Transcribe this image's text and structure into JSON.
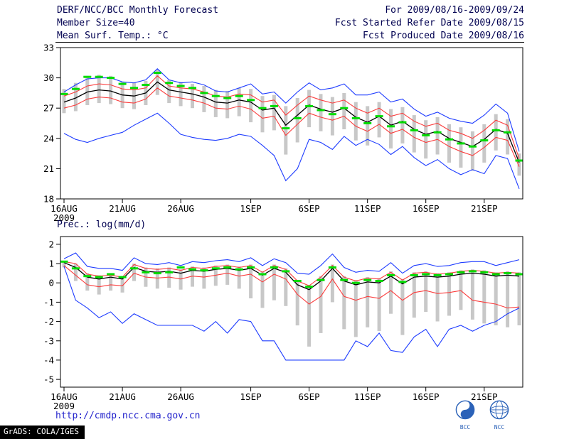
{
  "header": {
    "title": "DERF/NCC/BCC Monthly Forecast",
    "member_size": "Member Size=40",
    "period": "For 2009/08/16-2009/09/24",
    "refer_date": "Fcst Started Refer Date 2009/08/15",
    "produced_date": "Fcst Produced Date 2009/08/16"
  },
  "footer": {
    "url": "http://cmdp.ncc.cma.gov.cn",
    "grads_credit": "GrADS: COLA/IGES",
    "logo_left": "BCC",
    "logo_right": "NCC"
  },
  "colors": {
    "header_text": "#000050",
    "max_min_line": "#1e3cff",
    "quartile_line": "#fa3c3c",
    "median_line": "#000000",
    "ensemble_mean_dash": "#00dc00",
    "spread_bar": "#c8c8c8",
    "url_text": "#2222cc",
    "logo_blue": "#2b62b8"
  },
  "chart_data": [
    {
      "id": "temp",
      "type": "line",
      "title": "Mean Surf. Temp.: °C",
      "ylim": [
        18,
        33
      ],
      "y_ticks": [
        18,
        21,
        24,
        27,
        30,
        33
      ],
      "x_tick_labels": [
        "16AUG",
        "21AUG",
        "26AUG",
        "1SEP",
        "6SEP",
        "11SEP",
        "16SEP",
        "21SEP"
      ],
      "x_tick_indices": [
        0,
        5,
        10,
        16,
        21,
        26,
        31,
        36
      ],
      "x_year_label": "2009",
      "n_points": 40,
      "grid": false,
      "legend": "none",
      "series": [
        {
          "name": "member-spread",
          "style": "bars",
          "color": "#c8c8c8",
          "high": [
            28.9,
            29.5,
            30.2,
            30.3,
            30.2,
            29.6,
            29.5,
            29.7,
            30.8,
            29.8,
            29.6,
            29.4,
            29.2,
            28.8,
            28.7,
            29.0,
            28.9,
            28.2,
            28.3,
            27.2,
            28.0,
            28.8,
            28.4,
            28.1,
            28.5,
            27.6,
            27.2,
            27.6,
            26.9,
            27.1,
            26.3,
            25.8,
            26.1,
            25.4,
            25.1,
            24.7,
            25.4,
            26.4,
            25.9,
            22.5
          ],
          "low": [
            26.5,
            26.7,
            27.3,
            27.5,
            27.4,
            27.0,
            26.9,
            27.3,
            28.3,
            27.5,
            27.2,
            27.0,
            26.6,
            26.1,
            26.0,
            26.2,
            25.6,
            24.6,
            24.8,
            22.4,
            23.6,
            25.1,
            24.7,
            24.3,
            24.9,
            23.8,
            23.3,
            24.1,
            23.0,
            23.5,
            22.6,
            22.0,
            22.4,
            21.6,
            21.1,
            20.8,
            21.6,
            22.8,
            22.4,
            20.3
          ]
        },
        {
          "name": "member-max",
          "style": "line",
          "color": "#1e3cff",
          "values": [
            28.6,
            29.3,
            29.9,
            30.0,
            30.0,
            29.6,
            29.5,
            29.8,
            30.9,
            29.8,
            29.5,
            29.6,
            29.3,
            28.7,
            28.6,
            29.0,
            29.4,
            28.4,
            28.6,
            27.5,
            28.6,
            29.5,
            28.8,
            29.0,
            29.4,
            28.3,
            28.3,
            28.6,
            27.6,
            27.9,
            26.9,
            26.2,
            26.6,
            26.0,
            25.7,
            25.5,
            26.3,
            27.4,
            26.5,
            22.7
          ]
        },
        {
          "name": "member-min",
          "style": "line",
          "color": "#1e3cff",
          "values": [
            24.5,
            23.9,
            23.6,
            24.0,
            24.3,
            24.6,
            25.3,
            25.9,
            26.5,
            25.5,
            24.4,
            24.1,
            23.9,
            23.8,
            24.0,
            24.4,
            24.2,
            23.3,
            22.3,
            19.8,
            21.0,
            23.9,
            23.6,
            22.9,
            24.2,
            23.3,
            23.9,
            23.4,
            22.4,
            23.2,
            22.1,
            21.3,
            21.9,
            21.0,
            20.4,
            20.9,
            20.5,
            22.3,
            22.0,
            19.0
          ]
        },
        {
          "name": "upper-quartile",
          "style": "line",
          "color": "#fa3c3c",
          "values": [
            28.2,
            28.6,
            29.2,
            29.4,
            29.3,
            28.9,
            28.8,
            29.0,
            30.2,
            29.2,
            29.0,
            28.9,
            28.6,
            28.2,
            28.1,
            28.4,
            28.3,
            27.6,
            27.8,
            26.3,
            27.3,
            28.2,
            27.8,
            27.5,
            27.8,
            27.0,
            26.5,
            27.0,
            26.2,
            26.5,
            25.7,
            25.2,
            25.5,
            24.8,
            24.5,
            24.0,
            24.8,
            25.8,
            25.3,
            22.0
          ]
        },
        {
          "name": "lower-quartile",
          "style": "line",
          "color": "#fa3c3c",
          "values": [
            27.0,
            27.3,
            27.9,
            28.1,
            28.0,
            27.6,
            27.5,
            27.9,
            29.0,
            28.2,
            28.0,
            27.8,
            27.5,
            27.0,
            26.9,
            27.2,
            26.9,
            26.0,
            26.2,
            24.3,
            25.4,
            26.5,
            26.1,
            25.8,
            26.2,
            25.2,
            24.7,
            25.4,
            24.5,
            24.9,
            24.1,
            23.6,
            23.9,
            23.2,
            22.7,
            22.3,
            23.1,
            24.1,
            23.8,
            21.2
          ]
        },
        {
          "name": "median",
          "style": "line",
          "color": "#000000",
          "width": 1.3,
          "values": [
            27.6,
            28.0,
            28.6,
            28.8,
            28.7,
            28.3,
            28.2,
            28.5,
            29.6,
            28.8,
            28.6,
            28.4,
            28.1,
            27.6,
            27.5,
            27.8,
            27.6,
            26.8,
            27.0,
            25.3,
            26.3,
            27.3,
            26.9,
            26.6,
            27.0,
            26.1,
            25.6,
            26.2,
            25.3,
            25.7,
            24.9,
            24.4,
            24.7,
            24.0,
            23.6,
            23.2,
            23.9,
            24.9,
            24.5,
            21.6
          ]
        },
        {
          "name": "ensemble-mean",
          "style": "dashes",
          "color": "#00dc00",
          "values": [
            28.4,
            28.9,
            30.1,
            30.1,
            30.0,
            29.4,
            29.0,
            29.3,
            30.5,
            29.5,
            29.2,
            29.0,
            28.5,
            28.2,
            28.0,
            28.2,
            27.8,
            27.0,
            27.2,
            25.0,
            26.0,
            27.2,
            26.8,
            26.4,
            27.0,
            26.0,
            25.5,
            26.2,
            25.2,
            25.6,
            24.8,
            24.3,
            24.6,
            23.9,
            23.5,
            23.2,
            23.8,
            24.8,
            24.6,
            21.8
          ]
        }
      ]
    },
    {
      "id": "prec",
      "type": "line",
      "title": "Prec.: log(mm/d)",
      "ylim": [
        -5.4,
        2.4
      ],
      "y_ticks": [
        -5,
        -4,
        -3,
        -2,
        -1,
        0,
        1,
        2
      ],
      "x_tick_labels": [
        "16AUG",
        "21AUG",
        "26AUG",
        "1SEP",
        "6SEP",
        "11SEP",
        "16SEP",
        "21SEP"
      ],
      "x_tick_indices": [
        0,
        5,
        10,
        16,
        21,
        26,
        31,
        36
      ],
      "x_year_label": "2009",
      "n_points": 40,
      "grid": false,
      "legend": "none",
      "series": [
        {
          "name": "member-spread",
          "style": "bars",
          "color": "#c8c8c8",
          "high": [
            1.15,
            1.0,
            0.5,
            0.4,
            0.45,
            0.35,
            1.0,
            0.8,
            0.75,
            0.8,
            0.7,
            0.85,
            0.8,
            0.9,
            0.95,
            0.85,
            0.95,
            0.6,
            0.95,
            0.75,
            0.15,
            -0.1,
            0.35,
            0.95,
            0.35,
            0.15,
            0.3,
            0.25,
            0.6,
            0.2,
            0.55,
            0.6,
            0.5,
            0.55,
            0.65,
            0.7,
            0.65,
            0.55,
            0.6,
            0.55
          ],
          "low": [
            0.8,
            0.1,
            -0.4,
            -0.6,
            -0.4,
            -0.5,
            0.1,
            -0.2,
            -0.3,
            -0.25,
            -0.35,
            -0.2,
            -0.3,
            -0.15,
            -0.1,
            -0.3,
            -0.8,
            -1.3,
            -0.9,
            -1.2,
            -2.2,
            -3.3,
            -2.6,
            -1.0,
            -2.4,
            -2.8,
            -2.3,
            -2.5,
            -1.6,
            -2.7,
            -1.8,
            -1.5,
            -2.0,
            -1.7,
            -1.4,
            -1.9,
            -2.1,
            -2.2,
            -2.3,
            -2.2
          ]
        },
        {
          "name": "member-max",
          "style": "line",
          "color": "#1e3cff",
          "values": [
            1.25,
            1.55,
            0.85,
            0.75,
            0.75,
            0.65,
            1.3,
            1.0,
            0.95,
            1.05,
            0.9,
            1.1,
            1.05,
            1.15,
            1.2,
            1.1,
            1.3,
            0.9,
            1.25,
            1.05,
            0.5,
            0.45,
            0.9,
            1.5,
            0.8,
            0.55,
            0.65,
            0.6,
            1.05,
            0.5,
            0.9,
            1.0,
            0.85,
            0.9,
            1.05,
            1.1,
            1.1,
            0.9,
            1.05,
            1.2
          ]
        },
        {
          "name": "member-min",
          "style": "line",
          "color": "#1e3cff",
          "values": [
            0.85,
            -0.9,
            -1.3,
            -1.8,
            -1.5,
            -2.1,
            -1.6,
            -1.9,
            -2.2,
            -2.2,
            -2.2,
            -2.2,
            -2.5,
            -2.0,
            -2.6,
            -1.9,
            -2.0,
            -3.0,
            -3.0,
            -4.0,
            -4.0,
            -4.0,
            -4.0,
            -4.0,
            -4.0,
            -3.0,
            -3.3,
            -2.6,
            -3.5,
            -3.6,
            -2.8,
            -2.4,
            -3.3,
            -2.4,
            -2.2,
            -2.5,
            -2.2,
            -2.0,
            -1.6,
            -1.3
          ]
        },
        {
          "name": "upper-quartile",
          "style": "line",
          "color": "#fa3c3c",
          "values": [
            1.1,
            1.0,
            0.45,
            0.35,
            0.4,
            0.3,
            0.95,
            0.75,
            0.7,
            0.75,
            0.65,
            0.8,
            0.75,
            0.85,
            0.9,
            0.8,
            0.9,
            0.55,
            0.9,
            0.7,
            0.1,
            -0.15,
            0.3,
            0.9,
            0.3,
            0.1,
            0.25,
            0.2,
            0.55,
            0.15,
            0.5,
            0.55,
            0.45,
            0.5,
            0.6,
            0.65,
            0.6,
            0.5,
            0.55,
            0.5
          ]
        },
        {
          "name": "lower-quartile",
          "style": "line",
          "color": "#fa3c3c",
          "values": [
            0.9,
            0.4,
            -0.1,
            -0.2,
            -0.1,
            -0.15,
            0.5,
            0.3,
            0.25,
            0.3,
            0.2,
            0.35,
            0.3,
            0.4,
            0.5,
            0.35,
            0.45,
            0.05,
            0.45,
            0.2,
            -0.6,
            -1.1,
            -0.7,
            0.2,
            -0.7,
            -0.9,
            -0.7,
            -0.8,
            -0.4,
            -0.9,
            -0.5,
            -0.4,
            -0.55,
            -0.5,
            -0.4,
            -0.9,
            -1.0,
            -1.1,
            -1.3,
            -1.25
          ]
        },
        {
          "name": "median",
          "style": "line",
          "color": "#000000",
          "width": 1.3,
          "values": [
            1.05,
            0.8,
            0.3,
            0.2,
            0.3,
            0.2,
            0.8,
            0.6,
            0.55,
            0.6,
            0.5,
            0.65,
            0.6,
            0.7,
            0.75,
            0.65,
            0.75,
            0.4,
            0.75,
            0.55,
            -0.1,
            -0.35,
            0.1,
            0.75,
            0.1,
            -0.1,
            0.05,
            0.0,
            0.35,
            -0.05,
            0.3,
            0.35,
            0.3,
            0.35,
            0.45,
            0.5,
            0.45,
            0.35,
            0.4,
            0.35
          ]
        },
        {
          "name": "ensemble-mean",
          "style": "dashes",
          "color": "#00dc00",
          "values": [
            1.1,
            0.75,
            0.35,
            0.3,
            0.45,
            0.3,
            0.75,
            0.55,
            0.5,
            0.55,
            0.8,
            0.7,
            0.65,
            0.75,
            0.8,
            0.7,
            0.8,
            0.45,
            0.8,
            0.6,
            0.1,
            -0.2,
            0.15,
            0.8,
            0.15,
            0.0,
            0.15,
            0.1,
            0.4,
            0.05,
            0.4,
            0.45,
            0.4,
            0.45,
            0.55,
            0.6,
            0.55,
            0.45,
            0.5,
            0.45
          ]
        }
      ]
    }
  ]
}
